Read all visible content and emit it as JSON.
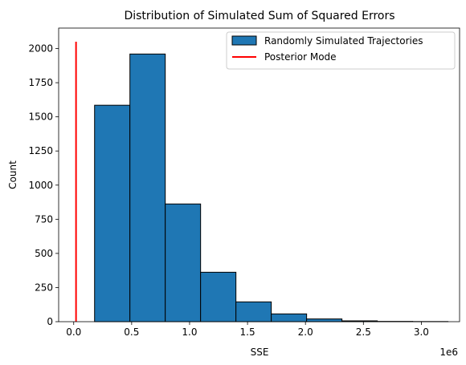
{
  "chart_data": {
    "type": "bar",
    "title": "Distribution of Simulated Sum of Squared Errors",
    "xlabel": "SSE",
    "ylabel": "Count",
    "x_offset_label": "1e6",
    "xlim": [
      -0.13,
      3.33
    ],
    "ylim": [
      0,
      2150
    ],
    "x_ticks": [
      0.0,
      0.5,
      1.0,
      1.5,
      2.0,
      2.5,
      3.0
    ],
    "x_tick_labels": [
      "0.0",
      "0.5",
      "1.0",
      "1.5",
      "2.0",
      "2.5",
      "3.0"
    ],
    "y_ticks": [
      0,
      250,
      500,
      750,
      1000,
      1250,
      1500,
      1750,
      2000
    ],
    "y_tick_labels": [
      "0",
      "250",
      "500",
      "750",
      "1000",
      "1250",
      "1500",
      "1750",
      "2000"
    ],
    "grid": false,
    "legend_position": "top-right",
    "series": [
      {
        "name": "Randomly Simulated Trajectories",
        "type": "histogram",
        "color": "#1f77b4",
        "edge_color": "#000000",
        "bin_edges": [
          0.18,
          0.485,
          0.79,
          1.095,
          1.4,
          1.705,
          2.01,
          2.315,
          2.62,
          2.925,
          3.23
        ],
        "counts": [
          1585,
          1960,
          862,
          362,
          145,
          57,
          20,
          6,
          2,
          1
        ]
      },
      {
        "name": "Posterior Mode",
        "type": "vline",
        "color": "#ff0000",
        "x": 0.02,
        "y_range": [
          0,
          2050
        ]
      }
    ]
  }
}
